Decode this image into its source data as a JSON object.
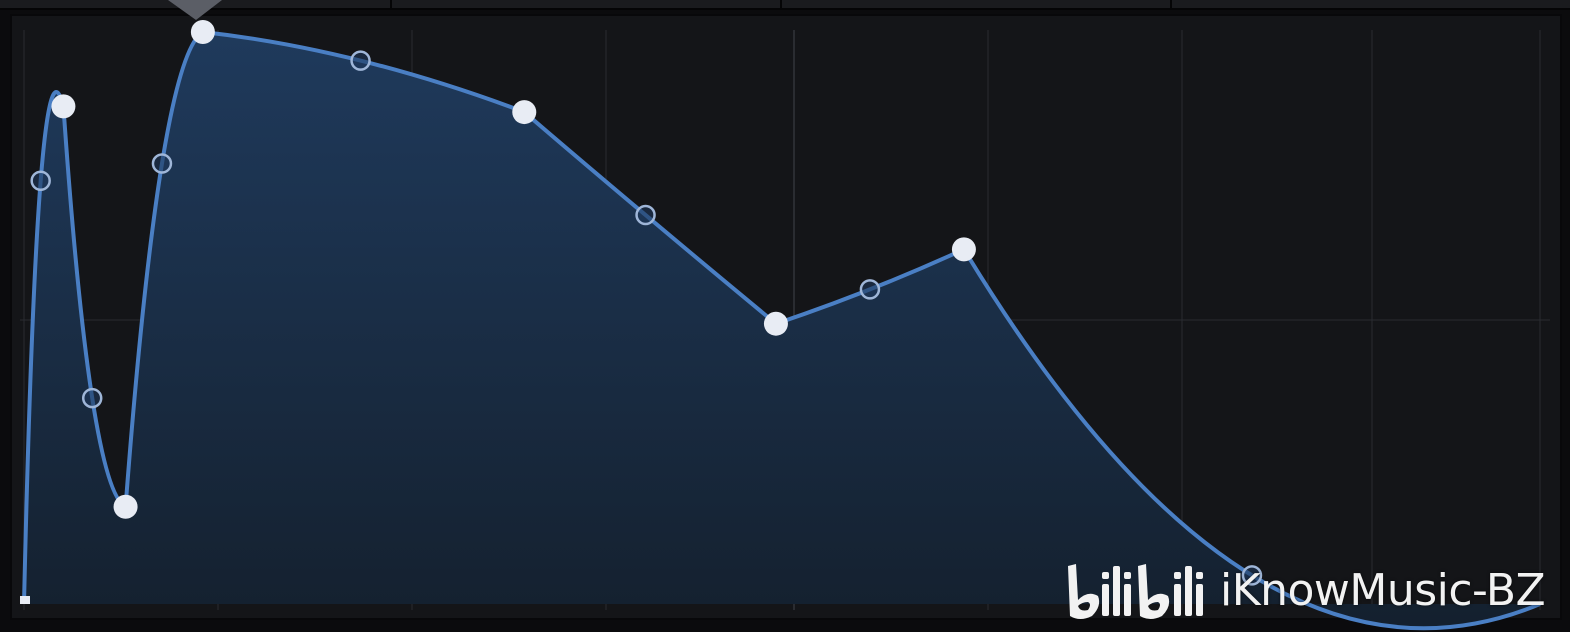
{
  "colors": {
    "background": "#141518",
    "grid_line": "#2a2c31",
    "curve": "#4a7fc4",
    "fill_top": "#1f3a5c",
    "fill_bottom": "#14202e",
    "node_fill": "#e8ecf4",
    "handle_stroke": "#9fb6d8"
  },
  "watermark": {
    "logo_text": "bilibili",
    "text": "iKnowMusic-BZ"
  },
  "envelope": {
    "main_nodes": [
      {
        "id": "n0",
        "time": 0.0,
        "level": 0.0
      },
      {
        "id": "n1",
        "time": 0.026,
        "level": 0.87
      },
      {
        "id": "n2",
        "time": 0.067,
        "level": 0.17
      },
      {
        "id": "n3",
        "time": 0.118,
        "level": 1.0
      },
      {
        "id": "n4",
        "time": 0.33,
        "level": 0.86
      },
      {
        "id": "n5",
        "time": 0.496,
        "level": 0.49
      },
      {
        "id": "n6",
        "time": 0.62,
        "level": 0.62
      },
      {
        "id": "n7",
        "time": 1.0,
        "level": 0.0
      }
    ],
    "curve_handles": [
      {
        "id": "h01",
        "time": 0.011,
        "level": 0.74
      },
      {
        "id": "h12",
        "time": 0.045,
        "level": 0.36
      },
      {
        "id": "h23",
        "time": 0.091,
        "level": 0.77
      },
      {
        "id": "h34",
        "time": 0.222,
        "level": 0.95
      },
      {
        "id": "h45",
        "time": 0.41,
        "level": 0.68
      },
      {
        "id": "h56",
        "time": 0.558,
        "level": 0.55
      },
      {
        "id": "h67",
        "time": 0.81,
        "level": 0.05
      }
    ]
  }
}
